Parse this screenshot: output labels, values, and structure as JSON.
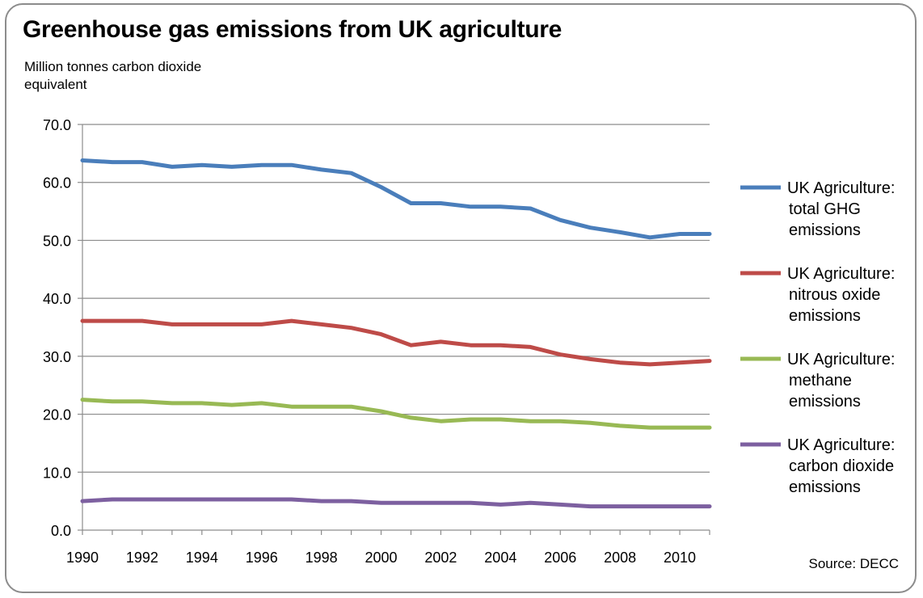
{
  "chart_data": {
    "type": "line",
    "title": "Greenhouse gas emissions from UK agriculture",
    "ylabel": "Million tonnes carbon dioxide equivalent",
    "xlabel": "",
    "source": "Source: DECC",
    "ylim": [
      0,
      70
    ],
    "y_ticks": [
      "0.0",
      "10.0",
      "20.0",
      "30.0",
      "40.0",
      "50.0",
      "60.0",
      "70.0"
    ],
    "x_ticks": [
      "1990",
      "1992",
      "1994",
      "1996",
      "1998",
      "2000",
      "2002",
      "2004",
      "2006",
      "2008",
      "2010"
    ],
    "x": [
      1990,
      1991,
      1992,
      1993,
      1994,
      1995,
      1996,
      1997,
      1998,
      1999,
      2000,
      2001,
      2002,
      2003,
      2004,
      2005,
      2006,
      2007,
      2008,
      2009,
      2010,
      2011
    ],
    "grid": true,
    "legend_position": "right",
    "series": [
      {
        "name": "UK Agriculture: total GHG emissions",
        "legend_lines": [
          "UK Agriculture:",
          "total GHG",
          "emissions"
        ],
        "color": "#4a7ebb",
        "values": [
          63.8,
          63.5,
          63.5,
          62.7,
          63.0,
          62.7,
          63.0,
          63.0,
          62.2,
          61.6,
          59.2,
          56.4,
          56.4,
          55.8,
          55.8,
          55.5,
          53.5,
          52.2,
          51.4,
          50.5,
          51.1,
          51.1
        ]
      },
      {
        "name": "UK Agriculture: nitrous oxide emissions",
        "legend_lines": [
          "UK Agriculture:",
          "nitrous oxide",
          "emissions"
        ],
        "color": "#be4b48",
        "values": [
          36.1,
          36.1,
          36.1,
          35.5,
          35.5,
          35.5,
          35.5,
          36.1,
          35.5,
          34.9,
          33.8,
          31.9,
          32.5,
          31.9,
          31.9,
          31.6,
          30.3,
          29.5,
          28.9,
          28.6,
          28.9,
          29.2
        ]
      },
      {
        "name": "UK Agriculture: methane emissions",
        "legend_lines": [
          "UK Agriculture:",
          "methane",
          "emissions"
        ],
        "color": "#98b954",
        "values": [
          22.5,
          22.2,
          22.2,
          21.9,
          21.9,
          21.6,
          21.9,
          21.3,
          21.3,
          21.3,
          20.5,
          19.4,
          18.8,
          19.1,
          19.1,
          18.8,
          18.8,
          18.5,
          18.0,
          17.7,
          17.7,
          17.7
        ]
      },
      {
        "name": "UK Agriculture: carbon dioxide emissions",
        "legend_lines": [
          "UK Agriculture:",
          "carbon dioxide",
          "emissions"
        ],
        "color": "#7d60a0",
        "values": [
          5.0,
          5.3,
          5.3,
          5.3,
          5.3,
          5.3,
          5.3,
          5.3,
          5.0,
          5.0,
          4.7,
          4.7,
          4.7,
          4.7,
          4.4,
          4.7,
          4.4,
          4.1,
          4.1,
          4.1,
          4.1,
          4.1
        ]
      }
    ]
  }
}
